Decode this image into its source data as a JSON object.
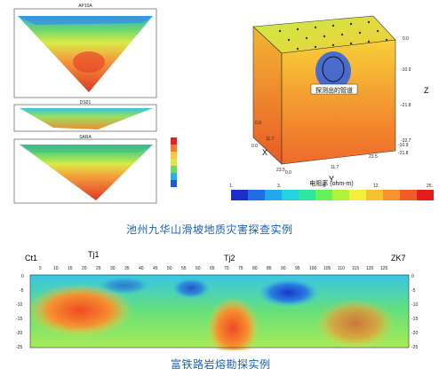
{
  "top_left": {
    "panels": [
      {
        "title": "AP10A"
      },
      {
        "title": "DS01"
      },
      {
        "title": "SARA"
      }
    ]
  },
  "cube": {
    "annotation": "探测出的管道",
    "axis_labels": {
      "x": "X",
      "y": "Y",
      "z": "Z"
    },
    "tick_labels": {
      "x": [
        "0.0",
        "11.7",
        "23.5"
      ],
      "y": [
        "0.0",
        "11.7",
        "23.5"
      ],
      "z": [
        "0.0",
        "-10.9",
        "-21.8",
        "-32.7"
      ],
      "front_depth": [
        "-10.9",
        "-21.8",
        "0.0"
      ]
    },
    "colorbar": {
      "title": "电阻率 (ohm-m)",
      "ticks": [
        "1.",
        "3.",
        "6.",
        "12.",
        "25."
      ],
      "colors": [
        "#1b2fc8",
        "#1f6ee6",
        "#22a8ee",
        "#25d3e0",
        "#2ee69c",
        "#64f25a",
        "#b0f23a",
        "#f2f03a",
        "#f7c232",
        "#f7922c",
        "#f25a28",
        "#e41c1c"
      ]
    }
  },
  "caption_top": "池州九华山滑坡地质灾害探查实例",
  "bottom_section": {
    "left_label": "Ct1",
    "mid_label": "Tj1",
    "mid_label2": "Tj2",
    "right_label": "ZK7",
    "x_ticks": [
      "5",
      "10",
      "15",
      "20",
      "25",
      "30",
      "35",
      "40",
      "45",
      "50",
      "55",
      "60",
      "65",
      "70",
      "75",
      "80",
      "85",
      "90",
      "95",
      "100",
      "105",
      "110",
      "115",
      "120",
      "125"
    ],
    "y_ticks_left": [
      "0",
      "-5",
      "-10",
      "-15",
      "-20",
      "-25"
    ],
    "y_ticks_right": [
      "0",
      "-5",
      "-10",
      "-15",
      "-20",
      "-25"
    ]
  },
  "caption_bottom": "富铁路岩熔勘探实例"
}
